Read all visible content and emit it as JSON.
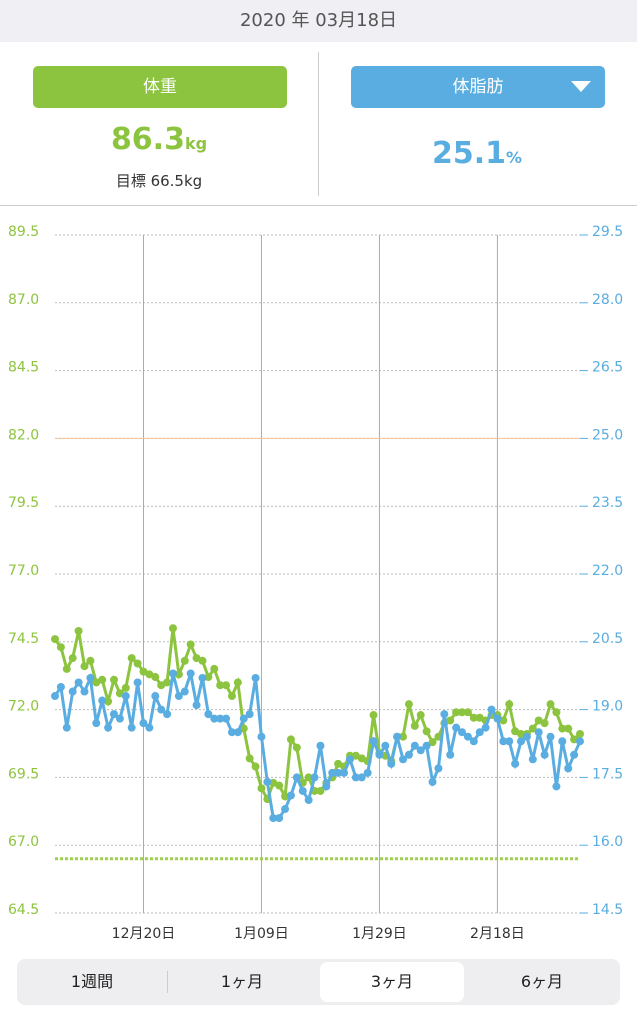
{
  "header": {
    "date": "2020 年 03月18日"
  },
  "cards": [
    {
      "button": "体重",
      "value": "86.3",
      "unit": "kg",
      "target": "目標 66.5kg"
    },
    {
      "button": "体脂肪",
      "value": "25.1",
      "unit": "%"
    }
  ],
  "chart_data": {
    "type": "line",
    "categories": [
      null,
      null,
      null,
      null,
      null,
      null,
      null,
      null,
      null,
      null,
      null,
      null,
      null,
      null,
      null,
      "12月20日",
      null,
      null,
      null,
      null,
      null,
      null,
      null,
      null,
      null,
      null,
      null,
      null,
      null,
      null,
      null,
      null,
      null,
      null,
      null,
      "1月09日",
      null,
      null,
      null,
      null,
      null,
      null,
      null,
      null,
      null,
      null,
      null,
      null,
      null,
      null,
      null,
      null,
      null,
      null,
      null,
      "1月29日",
      null,
      null,
      null,
      null,
      null,
      null,
      null,
      null,
      null,
      null,
      null,
      null,
      null,
      null,
      null,
      null,
      null,
      null,
      null,
      "2月18日",
      null,
      null,
      null,
      null,
      null,
      null,
      null,
      null,
      null,
      null,
      null,
      null,
      null,
      null
    ],
    "series": [
      {
        "name": "体重",
        "color": "#8dc43f",
        "values": [
          74.6,
          74.3,
          73.5,
          73.9,
          74.9,
          73.6,
          73.8,
          73.0,
          73.1,
          72.3,
          73.1,
          72.6,
          72.8,
          73.9,
          73.7,
          73.4,
          73.3,
          73.2,
          72.9,
          73.0,
          75.0,
          73.3,
          73.8,
          74.4,
          73.9,
          73.8,
          73.2,
          73.5,
          72.9,
          72.9,
          72.5,
          73.0,
          71.3,
          70.2,
          69.9,
          69.1,
          68.7,
          69.3,
          69.2,
          68.8,
          70.9,
          70.6,
          69.3,
          69.5,
          69.0,
          69.0,
          69.3,
          69.5,
          70.0,
          69.9,
          70.3,
          70.3,
          70.2,
          70.1,
          71.8,
          70.4,
          70.3,
          70.1,
          71.0,
          71.0,
          72.2,
          71.4,
          71.8,
          71.2,
          70.8,
          71.0,
          71.5,
          71.6,
          71.9,
          71.9,
          71.9,
          71.7,
          71.7,
          71.6,
          71.8,
          71.8,
          71.6,
          72.2,
          71.2,
          71.1,
          71.1,
          71.3,
          71.6,
          71.5,
          72.2,
          71.9,
          71.3,
          71.3,
          70.9,
          71.1
        ]
      },
      {
        "name": "体脂肪",
        "color": "#5aade0",
        "axis": "y2",
        "values": [
          19.3,
          19.5,
          18.6,
          19.4,
          19.6,
          19.4,
          19.7,
          18.7,
          19.2,
          18.6,
          18.9,
          18.8,
          19.3,
          18.6,
          19.6,
          18.7,
          18.6,
          19.3,
          19.0,
          18.9,
          19.8,
          19.3,
          19.4,
          19.8,
          19.1,
          19.7,
          18.9,
          18.8,
          18.8,
          18.8,
          18.5,
          18.5,
          18.8,
          18.9,
          19.7,
          18.4,
          17.4,
          16.6,
          16.6,
          16.8,
          17.1,
          17.5,
          17.2,
          17.0,
          17.5,
          18.2,
          17.3,
          17.6,
          17.6,
          17.6,
          17.9,
          17.5,
          17.5,
          17.6,
          18.3,
          18.0,
          18.2,
          17.8,
          18.4,
          17.9,
          18.0,
          18.2,
          18.1,
          18.2,
          17.4,
          17.7,
          18.9,
          18.0,
          18.6,
          18.5,
          18.4,
          18.3,
          18.5,
          18.6,
          19.0,
          18.8,
          18.3,
          18.3,
          17.8,
          18.3,
          18.4,
          17.9,
          18.5,
          18.0,
          18.4,
          17.3,
          18.3,
          17.7,
          18.0,
          18.3
        ]
      }
    ],
    "ylim": [
      64.5,
      89.5
    ],
    "yticks": [
      64.5,
      {
        "value": 67.0,
        "label": "67.0"
      },
      69.5,
      {
        "value": 72.0,
        "label": "72.0"
      },
      74.5,
      {
        "value": 77.0,
        "label": "77.0"
      },
      79.5,
      {
        "value": 82.0,
        "label": "82.0"
      },
      84.5,
      {
        "value": 87.0,
        "label": "87.0"
      },
      89.5
    ],
    "y2lim": [
      14.5,
      29.5
    ],
    "y2ticks": [
      14.5,
      {
        "value": 16.0,
        "label": "16.0"
      },
      17.5,
      {
        "value": 19.0,
        "label": "19.0"
      },
      20.5,
      {
        "value": 22.0,
        "label": "22.0"
      },
      23.5,
      {
        "value": 25.0,
        "label": "25.0"
      },
      26.5,
      {
        "value": 28.0,
        "label": "28.0"
      },
      29.5
    ],
    "targets": [
      {
        "axis": "y",
        "value": 66.5,
        "color": "#9fd04f"
      },
      {
        "axis": "y2",
        "value": 25.0,
        "color": "#f6c49a"
      }
    ],
    "grid": true
  },
  "tabs": {
    "options": [
      "1週間",
      "1ヶ月",
      "3ヶ月",
      "6ヶ月"
    ],
    "selected": 2
  }
}
